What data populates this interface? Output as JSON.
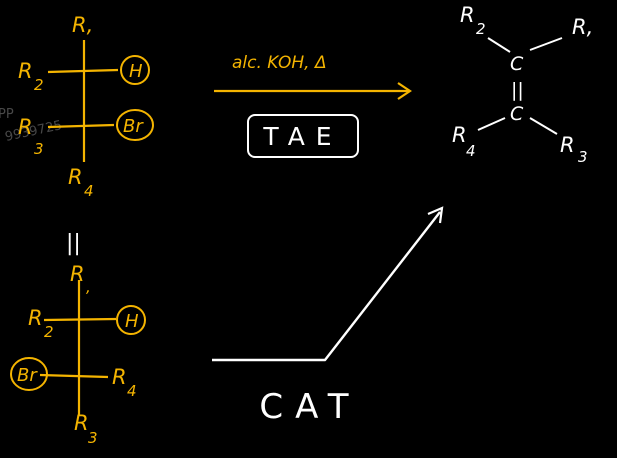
{
  "colors": {
    "background": "#000000",
    "ink_orange": "#f4b400",
    "ink_white": "#ffffff",
    "watermark": "#5a5a5a"
  },
  "watermark": {
    "text": "9939725",
    "partial_left": "PP"
  },
  "top_fischer": {
    "top": "R,",
    "left_upper": "R",
    "left_upper_sub": "2",
    "right_upper": "H",
    "left_lower": "R",
    "left_lower_sub": "3",
    "right_lower": "Br",
    "bottom": "R",
    "bottom_sub": "4"
  },
  "equals_sign": "||",
  "bottom_fischer": {
    "top": "R",
    "top_sub": ",",
    "left_upper": "R",
    "left_upper_sub": "2",
    "right_upper": "H",
    "left_lower": "Br",
    "right_lower": "R",
    "right_lower_sub": "4",
    "bottom": "R",
    "bottom_sub": "3"
  },
  "reaction": {
    "reagent": "alc. KOH, Δ",
    "label": "TAE"
  },
  "product": {
    "r_top_left": "R",
    "r_top_left_sub": "2",
    "r_top_right": "R,",
    "c_top": "C",
    "double_bond": "||",
    "c_bottom": "C",
    "r_bottom_left": "R",
    "r_bottom_left_sub": "4",
    "r_bottom_right": "R",
    "r_bottom_right_sub": "3"
  },
  "cat_label": "CAT"
}
